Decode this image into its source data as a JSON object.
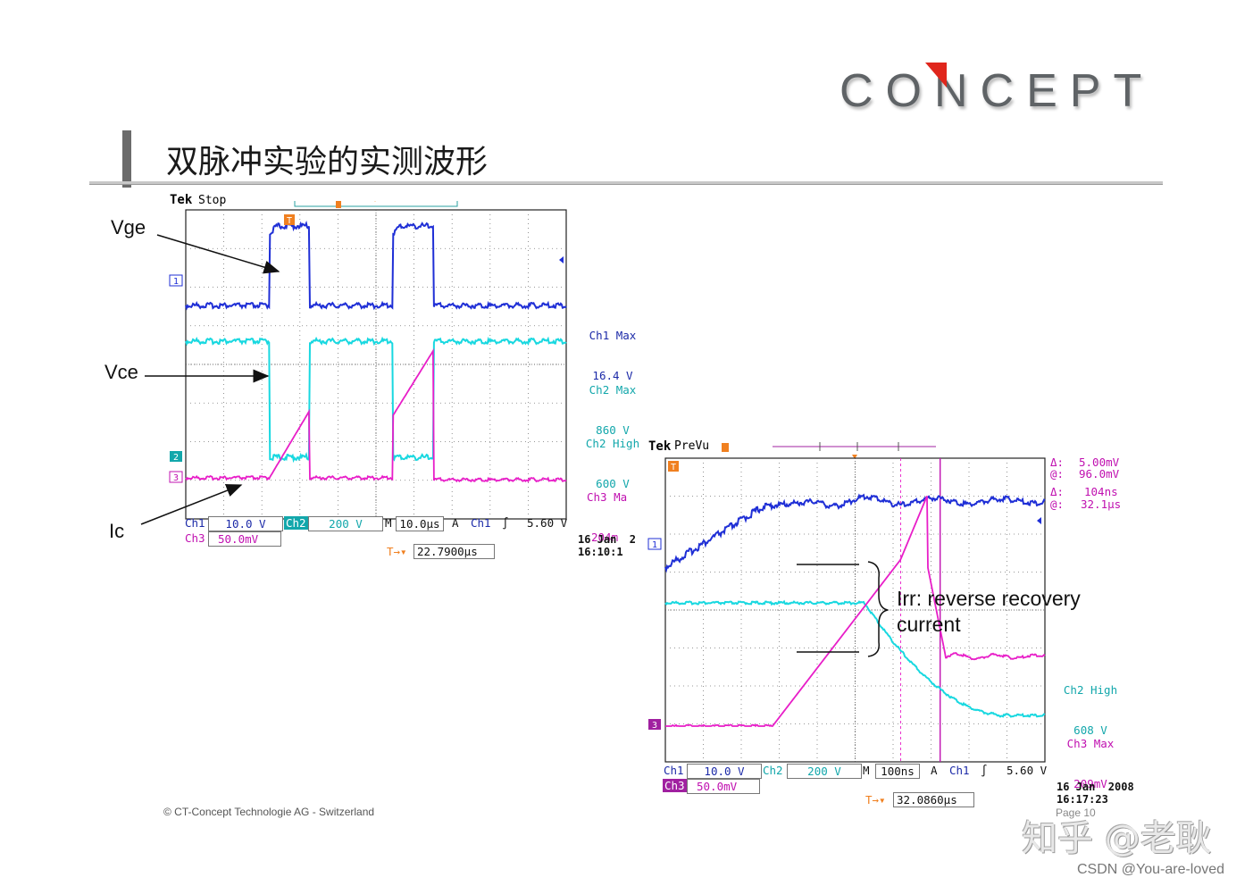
{
  "header": {
    "logo_text": "CONCEPT",
    "title": "双脉冲实验的实测波形"
  },
  "colors": {
    "ch1": "#1f2fd6",
    "ch2": "#18d8e0",
    "ch3": "#e81ec8",
    "ch2_label": "#12a7ab",
    "ch3_label": "#c010b0",
    "ch1_label": "#1c2aa8",
    "trigger": "#f08020",
    "accent": "#e0261c"
  },
  "annotations": {
    "vge": "Vge",
    "vce": "Vce",
    "ic": "Ic",
    "irr_line1": "Irr: reverse recovery",
    "irr_line2": "current"
  },
  "scope1": {
    "brand": "Tek",
    "mode": "Stop",
    "trigger_marker": "T",
    "ch1_marker": "1",
    "ch2_marker": "2",
    "ch3_marker": "3",
    "measurements": [
      {
        "name": "Ch1 Max",
        "value": "16.4 V"
      },
      {
        "name": "Ch2 Max",
        "value": "860 V"
      },
      {
        "name": "Ch2 High",
        "value": "600 V"
      },
      {
        "name": "Ch3 Ma",
        "value": "204m"
      }
    ],
    "status": {
      "ch1_label": "Ch1",
      "ch1_scale": "10.0 V",
      "ch2_label": "Ch2",
      "ch2_scale": "200 V",
      "m_label": "M",
      "timebase": "10.0µs",
      "a_label": "A",
      "trig_src": "Ch1",
      "trig_slope": "∫",
      "trig_level": "5.60 V",
      "ch3_label": "Ch3",
      "ch3_scale": "50.0mV",
      "trig_pos_label": "T→▾",
      "trig_pos": "22.7900µs",
      "date": "16 Jan  2",
      "time": "16:10:1"
    }
  },
  "scope2": {
    "brand": "Tek",
    "mode": "PreVu",
    "trigger_marker": "T",
    "ch1_marker": "1",
    "ch3_marker": "3",
    "cursor_readout": [
      {
        "label": "Δ:",
        "value": "5.00mV"
      },
      {
        "label": "@:",
        "value": "96.0mV"
      },
      {
        "label": "Δ:",
        "value": "104ns"
      },
      {
        "label": "@:",
        "value": "32.1µs"
      }
    ],
    "measurements": [
      {
        "name": "Ch2 High",
        "value": "608 V"
      },
      {
        "name": "Ch3 Max",
        "value": "209mV"
      }
    ],
    "status": {
      "ch1_label": "Ch1",
      "ch1_scale": "10.0 V",
      "ch2_label": "Ch2",
      "ch2_scale": "200 V",
      "m_label": "M",
      "timebase": "100ns",
      "a_label": "A",
      "trig_src": "Ch1",
      "trig_slope": "∫",
      "trig_level": "5.60 V",
      "ch3_label": "Ch3",
      "ch3_scale": "50.0mV",
      "trig_pos_label": "T→▾",
      "trig_pos": "32.0860µs",
      "date": "16 Jan  2008",
      "time": "16:17:23"
    }
  },
  "footer": {
    "copyright": "© CT-Concept Technologie AG - Switzerland",
    "page": "Page 10",
    "watermark_zhihu": "知乎 @老耿",
    "watermark_csdn": "CSDN @You-are-loved"
  },
  "chart_data": [
    {
      "type": "line",
      "title": "",
      "x_unit": "µs",
      "x_per_div": 10.0,
      "xlim": [
        -50,
        50
      ],
      "trigger_time_us": -28,
      "series": [
        {
          "name": "Ch1",
          "shape": "double-pulse",
          "low_V": 0,
          "high_V": 16.4,
          "pulse1_us": [
            -28,
            -17.5
          ],
          "pulse2_us": [
            4.5,
            15
          ]
        },
        {
          "name": "Ch2",
          "shape": "inverted double-pulse",
          "high_V": 600,
          "max_V": 860,
          "pulse1_us": [
            -28,
            -17.5
          ],
          "pulse2_us": [
            4.5,
            15
          ]
        },
        {
          "name": "Ch3",
          "shape": "ramp during pulses",
          "max_mV": 204,
          "ramp1_us": [
            -28,
            -17.5
          ],
          "ramp2_us": [
            4.5,
            15
          ]
        }
      ]
    },
    {
      "type": "line",
      "title": "",
      "x_unit": "ns",
      "x_per_div": 100,
      "xlim": [
        -500,
        500
      ],
      "series": [
        {
          "name": "Ch1",
          "shape": "rise then oscillation",
          "settled_V": 10.0
        },
        {
          "name": "Ch2",
          "shape": "falling edge",
          "high_V": 608,
          "fall_ns": [
            25,
            380
          ]
        },
        {
          "name": "Ch3",
          "shape": "rise with reverse recovery peak",
          "max_mV": 209,
          "peak_ns": 190
        }
      ]
    }
  ]
}
